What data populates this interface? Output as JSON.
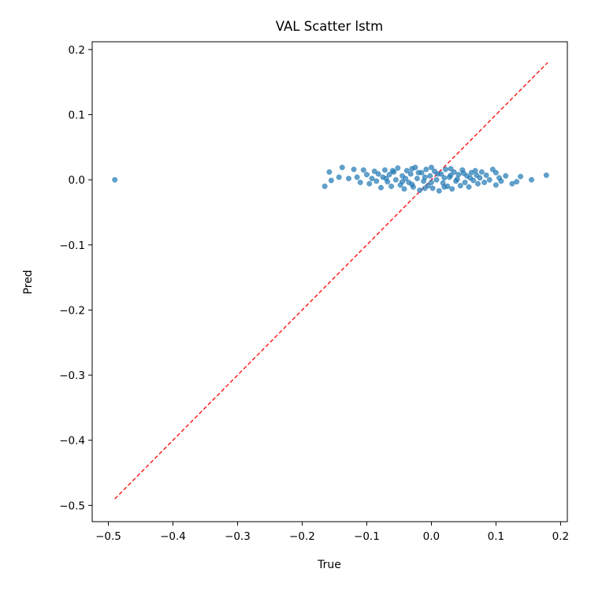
{
  "chart_data": {
    "type": "scatter",
    "title": "VAL Scatter lstm",
    "xlabel": "True",
    "ylabel": "Pred",
    "xlim": [
      -0.525,
      0.2105
    ],
    "ylim": [
      -0.525,
      0.212
    ],
    "x_ticks": [
      -0.5,
      -0.4,
      -0.3,
      -0.2,
      -0.1,
      0.0,
      0.1,
      0.2
    ],
    "y_ticks": [
      -0.5,
      -0.4,
      -0.3,
      -0.2,
      -0.1,
      0.0,
      0.1,
      0.2
    ],
    "x_tick_labels": [
      "−0.5",
      "−0.4",
      "−0.3",
      "−0.2",
      "−0.1",
      "0.0",
      "0.1",
      "0.2"
    ],
    "y_tick_labels": [
      "−0.5",
      "−0.4",
      "−0.3",
      "−0.2",
      "−0.1",
      "0.0",
      "0.1",
      "0.2"
    ],
    "grid": false,
    "colors": {
      "points": "#1f77b4",
      "reference_line": "#ff0000"
    },
    "reference_line": {
      "from": [
        -0.49,
        -0.49
      ],
      "to": [
        0.18,
        0.18
      ],
      "style": "dashed"
    },
    "series": [
      {
        "points": [
          [
            -0.49,
            0.0
          ],
          [
            -0.165,
            -0.01
          ],
          [
            -0.158,
            0.012
          ],
          [
            -0.155,
            -0.001
          ],
          [
            -0.143,
            0.004
          ],
          [
            -0.138,
            0.019
          ],
          [
            -0.128,
            0.002
          ],
          [
            -0.12,
            0.016
          ],
          [
            -0.115,
            0.004
          ],
          [
            -0.11,
            -0.004
          ],
          [
            -0.105,
            0.015
          ],
          [
            -0.1,
            0.008
          ],
          [
            -0.096,
            -0.006
          ],
          [
            -0.092,
            0.002
          ],
          [
            -0.088,
            0.013
          ],
          [
            -0.085,
            -0.002
          ],
          [
            -0.082,
            0.009
          ],
          [
            -0.078,
            -0.012
          ],
          [
            -0.075,
            0.004
          ],
          [
            -0.072,
            0.015
          ],
          [
            -0.068,
            -0.003
          ],
          [
            -0.065,
            0.008
          ],
          [
            -0.062,
            -0.01
          ],
          [
            -0.058,
            0.012
          ],
          [
            -0.055,
            0.0
          ],
          [
            -0.052,
            0.018
          ],
          [
            -0.048,
            -0.008
          ],
          [
            -0.045,
            0.006
          ],
          [
            -0.042,
            -0.014
          ],
          [
            -0.038,
            0.014
          ],
          [
            -0.035,
            -0.004
          ],
          [
            -0.032,
            0.009
          ],
          [
            -0.028,
            -0.011
          ],
          [
            -0.025,
            0.019
          ],
          [
            -0.022,
            0.002
          ],
          [
            -0.018,
            -0.016
          ],
          [
            -0.015,
            0.011
          ],
          [
            -0.012,
            -0.002
          ],
          [
            -0.008,
            0.016
          ],
          [
            -0.005,
            -0.009
          ],
          [
            -0.002,
            0.006
          ],
          [
            0.002,
            -0.013
          ],
          [
            0.005,
            0.013
          ],
          [
            0.008,
            0.0
          ],
          [
            0.012,
            -0.017
          ],
          [
            0.015,
            0.009
          ],
          [
            0.018,
            -0.005
          ],
          [
            0.022,
            0.016
          ],
          [
            0.025,
            -0.01
          ],
          [
            0.028,
            0.004
          ],
          [
            0.032,
            -0.014
          ],
          [
            0.035,
            0.012
          ],
          [
            0.038,
            -0.002
          ],
          [
            0.042,
            0.008
          ],
          [
            0.045,
            -0.009
          ],
          [
            0.048,
            0.015
          ],
          [
            0.052,
            -0.004
          ],
          [
            0.055,
            0.006
          ],
          [
            0.058,
            -0.011
          ],
          [
            0.062,
            0.011
          ],
          [
            0.065,
            -0.001
          ],
          [
            0.068,
            0.014
          ],
          [
            0.072,
            -0.006
          ],
          [
            0.075,
            0.003
          ],
          [
            0.078,
            0.012
          ],
          [
            0.082,
            -0.004
          ],
          [
            0.085,
            0.007
          ],
          [
            0.09,
            0.0
          ],
          [
            0.095,
            0.016
          ],
          [
            0.1,
            -0.008
          ],
          [
            0.105,
            0.003
          ],
          [
            0.1,
            0.011
          ],
          [
            0.108,
            -0.002
          ],
          [
            0.115,
            0.006
          ],
          [
            0.125,
            -0.006
          ],
          [
            0.132,
            -0.003
          ],
          [
            0.138,
            0.005
          ],
          [
            0.155,
            0.0
          ],
          [
            0.178,
            0.007
          ],
          [
            -0.07,
            0.002
          ],
          [
            -0.06,
            0.014
          ],
          [
            -0.04,
            0.002
          ],
          [
            -0.03,
            -0.007
          ],
          [
            -0.02,
            0.011
          ],
          [
            -0.01,
            0.004
          ],
          [
            0.0,
            -0.004
          ],
          [
            0.01,
            0.009
          ],
          [
            0.02,
            0.003
          ],
          [
            0.03,
            0.007
          ],
          [
            0.04,
            0.001
          ],
          [
            0.05,
            0.01
          ],
          [
            0.06,
            0.003
          ],
          [
            0.07,
            0.007
          ],
          [
            -0.03,
            0.017
          ],
          [
            0.0,
            0.019
          ],
          [
            0.03,
            0.017
          ],
          [
            -0.01,
            -0.013
          ],
          [
            0.02,
            -0.011
          ],
          [
            -0.045,
            -0.003
          ]
        ]
      }
    ]
  }
}
